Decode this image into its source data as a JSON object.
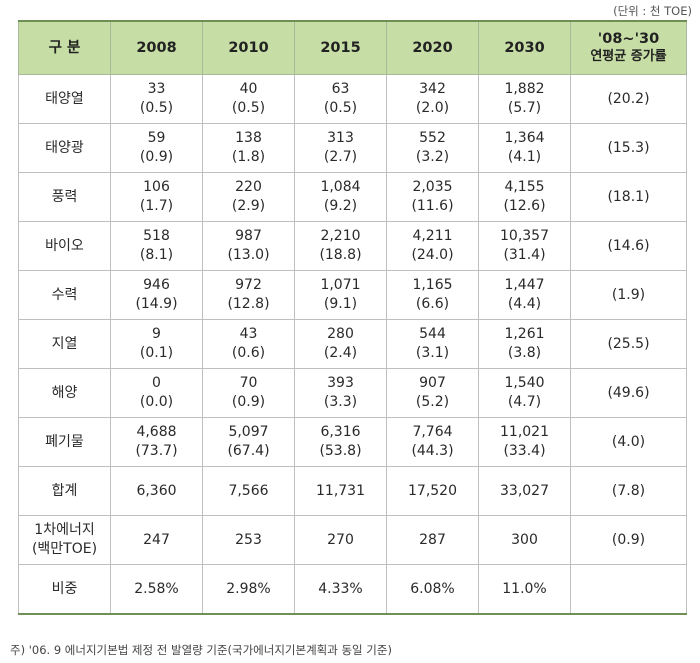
{
  "unit_note": "(단위 : 천 TOE)",
  "header": {
    "category": "구  분",
    "years": [
      "2008",
      "2010",
      "2015",
      "2020",
      "2030"
    ],
    "growth_line1": "'08~'30",
    "growth_line2": "연평균 증가률"
  },
  "rows": [
    {
      "label": "태양열",
      "values": [
        "33",
        "40",
        "63",
        "342",
        "1,882"
      ],
      "shares": [
        "(0.5)",
        "(0.5)",
        "(0.5)",
        "(2.0)",
        "(5.7)"
      ],
      "growth": "(20.2)"
    },
    {
      "label": "태양광",
      "values": [
        "59",
        "138",
        "313",
        "552",
        "1,364"
      ],
      "shares": [
        "(0.9)",
        "(1.8)",
        "(2.7)",
        "(3.2)",
        "(4.1)"
      ],
      "growth": "(15.3)"
    },
    {
      "label": "풍력",
      "values": [
        "106",
        "220",
        "1,084",
        "2,035",
        "4,155"
      ],
      "shares": [
        "(1.7)",
        "(2.9)",
        "(9.2)",
        "(11.6)",
        "(12.6)"
      ],
      "growth": "(18.1)"
    },
    {
      "label": "바이오",
      "values": [
        "518",
        "987",
        "2,210",
        "4,211",
        "10,357"
      ],
      "shares": [
        "(8.1)",
        "(13.0)",
        "(18.8)",
        "(24.0)",
        "(31.4)"
      ],
      "growth": "(14.6)"
    },
    {
      "label": "수력",
      "values": [
        "946",
        "972",
        "1,071",
        "1,165",
        "1,447"
      ],
      "shares": [
        "(14.9)",
        "(12.8)",
        "(9.1)",
        "(6.6)",
        "(4.4)"
      ],
      "growth": "(1.9)"
    },
    {
      "label": "지열",
      "values": [
        "9",
        "43",
        "280",
        "544",
        "1,261"
      ],
      "shares": [
        "(0.1)",
        "(0.6)",
        "(2.4)",
        "(3.1)",
        "(3.8)"
      ],
      "growth": "(25.5)"
    },
    {
      "label": "해양",
      "values": [
        "0",
        "70",
        "393",
        "907",
        "1,540"
      ],
      "shares": [
        "(0.0)",
        "(0.9)",
        "(3.3)",
        "(5.2)",
        "(4.7)"
      ],
      "growth": "(49.6)"
    },
    {
      "label": "폐기물",
      "values": [
        "4,688",
        "5,097",
        "6,316",
        "7,764",
        "11,021"
      ],
      "shares": [
        "(73.7)",
        "(67.4)",
        "(53.8)",
        "(44.3)",
        "(33.4)"
      ],
      "growth": "(4.0)"
    }
  ],
  "total": {
    "label": "합계",
    "values": [
      "6,360",
      "7,566",
      "11,731",
      "17,520",
      "33,027"
    ],
    "growth": "(7.8)"
  },
  "primary": {
    "label_line1": "1차에너지",
    "label_line2": "(백만TOE)",
    "values": [
      "247",
      "253",
      "270",
      "287",
      "300"
    ],
    "growth": "(0.9)"
  },
  "ratio": {
    "label": "비중",
    "values": [
      "2.58%",
      "2.98%",
      "4.33%",
      "6.08%",
      "11.0%"
    ],
    "growth": ""
  },
  "footnote": "주) '06. 9 에너지기본법 제정 전 발열량 기준(국가에너지기본계획과 동일 기준)"
}
